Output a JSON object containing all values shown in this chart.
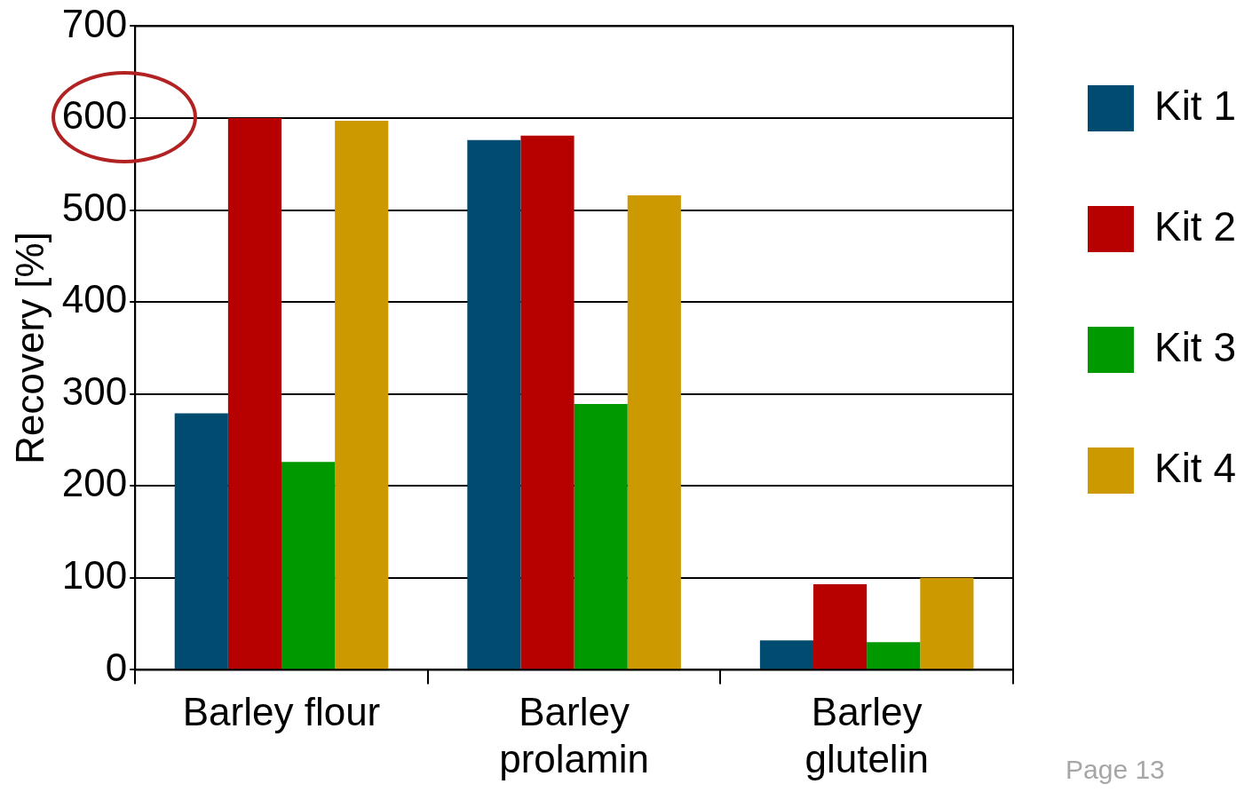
{
  "chart_data": {
    "type": "bar",
    "ylabel": "Recovery [%]",
    "categories": [
      "Barley flour",
      "Barley prolamin",
      "Barley glutelin"
    ],
    "series": [
      {
        "name": "Kit 1",
        "color": "#004b70",
        "values": [
          279,
          576,
          32
        ]
      },
      {
        "name": "Kit 2",
        "color": "#b70000",
        "values": [
          600,
          581,
          93
        ]
      },
      {
        "name": "Kit 3",
        "color": "#009900",
        "values": [
          226,
          289,
          30
        ]
      },
      {
        "name": "Kit 4",
        "color": "#cc9900",
        "values": [
          597,
          516,
          100
        ]
      }
    ],
    "ylim": [
      0,
      700
    ],
    "yticks": [
      0,
      100,
      200,
      300,
      400,
      500,
      600,
      700
    ],
    "grid": "y",
    "legend": "right",
    "annotations": [
      "Page 13"
    ]
  }
}
